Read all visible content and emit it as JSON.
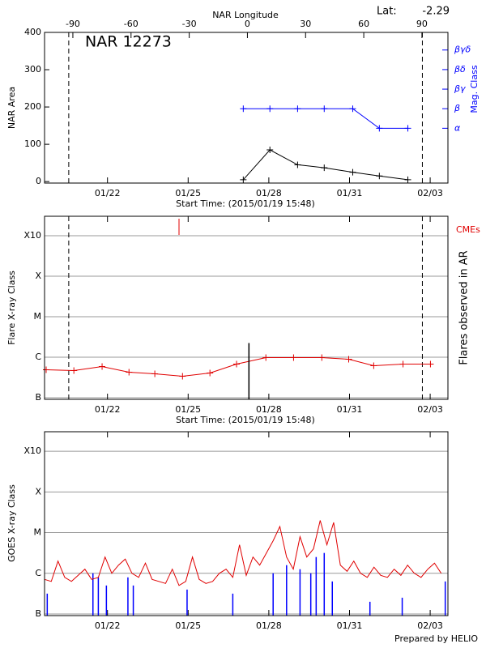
{
  "chart_data": [
    {
      "type": "line",
      "title": "NAR 12273",
      "ylabel": "NAR Area",
      "y2label": "Mag. Class",
      "x2label": "NAR Longitude",
      "xlabel": "Start Time: (2015/01/19 15:48)",
      "lat_label": "Lat:",
      "lat": -2.29,
      "xlim": [
        0,
        15
      ],
      "xticks": [
        {
          "value": 2.34,
          "label": "01/22"
        },
        {
          "value": 5.34,
          "label": "01/25"
        },
        {
          "value": 8.34,
          "label": "01/28"
        },
        {
          "value": 11.34,
          "label": "01/31"
        },
        {
          "value": 14.34,
          "label": "02/03"
        }
      ],
      "ylim": [
        -4,
        400
      ],
      "yticks": [
        0,
        100,
        200,
        300,
        400
      ],
      "grid": false,
      "x2lim": [
        -104.6,
        103.4
      ],
      "x2ticks": [
        -90,
        -60,
        -30,
        0,
        30,
        60,
        90
      ],
      "y2categories": [
        "α",
        "β",
        "βγ",
        "βδ",
        "βγδ"
      ],
      "y2lim": [
        -2.8,
        4.9
      ],
      "vlines": [
        0.9,
        14.05
      ],
      "x": [
        7.39,
        8.38,
        9.41,
        10.4,
        11.46,
        12.45,
        13.51
      ],
      "series": [
        {
          "color": "#000000",
          "values": [
            5,
            85,
            45,
            37,
            25,
            15,
            5
          ]
        },
        {
          "color": "#0000ff",
          "axis": "y2",
          "values": [
            "β",
            "β",
            "β",
            "β",
            "β",
            "α",
            "α"
          ]
        }
      ]
    },
    {
      "type": "line",
      "ylabel": "Flare X-ray Class",
      "y2label": "Flares observed in AR",
      "xlabel": "Start Time: (2015/01/19 15:48)",
      "xlim": [
        0,
        15
      ],
      "xticks": [
        {
          "value": 2.34,
          "label": "01/22"
        },
        {
          "value": 5.34,
          "label": "01/25"
        },
        {
          "value": 8.34,
          "label": "01/28"
        },
        {
          "value": 11.34,
          "label": "01/31"
        },
        {
          "value": 14.34,
          "label": "02/03"
        }
      ],
      "ylim": [
        -7.04,
        -2.52
      ],
      "yticks": [
        {
          "value": -7,
          "label": "B"
        },
        {
          "value": -6,
          "label": "C"
        },
        {
          "value": -5,
          "label": "M"
        },
        {
          "value": -4,
          "label": "X"
        },
        {
          "value": -3,
          "label": "X10"
        }
      ],
      "grid": true,
      "vlines": [
        0.9,
        14.05
      ],
      "x": [
        0.06,
        1.09,
        2.14,
        3.14,
        4.1,
        5.13,
        6.15,
        7.14,
        8.23,
        9.26,
        10.31,
        11.31,
        12.24,
        13.33,
        14.35
      ],
      "series": [
        {
          "color": "#e00000",
          "values": [
            -6.31,
            -6.33,
            -6.23,
            -6.37,
            -6.41,
            -6.47,
            -6.39,
            -6.17,
            -6.01,
            -6.01,
            -6.01,
            -6.05,
            -6.21,
            -6.17,
            -6.17
          ]
        }
      ],
      "cme_label": "CMEs",
      "cme_color": "#e00000",
      "cme_x": [
        5.0
      ],
      "flares": {
        "color": "#000000",
        "x": [
          7.6
        ],
        "values": [
          -5.65
        ]
      }
    },
    {
      "type": "line",
      "ylabel": "GOES X-ray Class",
      "footer": "Prepared by HELIO",
      "xlim": [
        0,
        15
      ],
      "xticks": [
        {
          "value": 2.34,
          "label": "01/22"
        },
        {
          "value": 5.34,
          "label": "01/25"
        },
        {
          "value": 8.34,
          "label": "01/28"
        },
        {
          "value": 11.34,
          "label": "01/31"
        },
        {
          "value": 14.34,
          "label": "02/03"
        }
      ],
      "ylim": [
        -7.04,
        -2.52
      ],
      "yticks": [
        {
          "value": -7,
          "label": "B"
        },
        {
          "value": -6,
          "label": "C"
        },
        {
          "value": -5,
          "label": "M"
        },
        {
          "value": -4,
          "label": "X"
        },
        {
          "value": -3,
          "label": "X10"
        }
      ],
      "grid": true,
      "x": [
        0,
        0.25,
        0.5,
        0.75,
        1,
        1.25,
        1.5,
        1.75,
        2,
        2.25,
        2.5,
        2.75,
        3,
        3.25,
        3.5,
        3.75,
        4,
        4.25,
        4.5,
        4.75,
        5,
        5.25,
        5.5,
        5.75,
        6,
        6.25,
        6.5,
        6.75,
        7,
        7.25,
        7.5,
        7.75,
        8,
        8.25,
        8.5,
        8.75,
        9,
        9.25,
        9.5,
        9.75,
        10,
        10.25,
        10.5,
        10.75,
        11,
        11.25,
        11.5,
        11.75,
        12,
        12.25,
        12.5,
        12.75,
        13,
        13.25,
        13.5,
        13.75,
        14,
        14.25,
        14.5,
        14.75
      ],
      "series": [
        {
          "color": "#e00000",
          "values": [
            -6.15,
            -6.2,
            -5.7,
            -6.1,
            -6.2,
            -6.05,
            -5.9,
            -6.15,
            -6.1,
            -5.6,
            -6.0,
            -5.8,
            -5.65,
            -6.0,
            -6.1,
            -5.75,
            -6.15,
            -6.2,
            -6.25,
            -5.9,
            -6.3,
            -6.2,
            -5.6,
            -6.15,
            -6.25,
            -6.2,
            -6.0,
            -5.9,
            -6.1,
            -5.3,
            -6.05,
            -5.6,
            -5.8,
            -5.5,
            -5.2,
            -4.85,
            -5.6,
            -5.9,
            -5.1,
            -5.6,
            -5.4,
            -4.7,
            -5.3,
            -4.75,
            -5.8,
            -5.95,
            -5.7,
            -6.0,
            -6.1,
            -5.85,
            -6.05,
            -6.1,
            -5.9,
            -6.05,
            -5.8,
            -6.0,
            -6.1,
            -5.9,
            -5.75,
            -6.0
          ]
        }
      ],
      "spikes": {
        "color": "#0000ff",
        "x": [
          0.1,
          1.8,
          2.0,
          2.3,
          3.1,
          3.3,
          5.3,
          7.0,
          8.5,
          9.0,
          9.5,
          9.9,
          10.1,
          10.4,
          10.7,
          12.1,
          13.3,
          14.9
        ],
        "values": [
          -6.5,
          -6.0,
          -6.1,
          -6.3,
          -6.1,
          -6.3,
          -6.4,
          -6.5,
          -6.0,
          -5.8,
          -5.9,
          -6.0,
          -5.6,
          -5.5,
          -6.2,
          -6.7,
          -6.6,
          -6.2
        ]
      }
    }
  ]
}
